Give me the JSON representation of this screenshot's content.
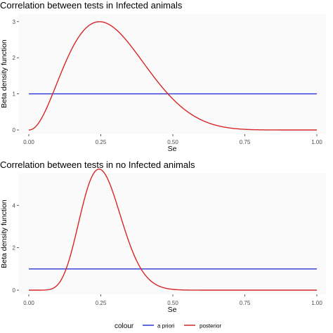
{
  "chart_data": [
    {
      "type": "line",
      "title": "Correlation between tests in Infected animals",
      "xlabel": "Se",
      "ylabel": "Beta density function",
      "xlim": [
        0,
        1
      ],
      "ylim": [
        0,
        3.2
      ],
      "x_ticks": [
        "0.00",
        "0.25",
        "0.50",
        "0.75",
        "1.00"
      ],
      "y_ticks": [
        "0",
        "1",
        "2",
        "3"
      ],
      "grid": false,
      "series": [
        {
          "name": "a priori",
          "color": "#2b35d8",
          "beta": [
            1,
            1
          ]
        },
        {
          "name": "posterior",
          "color": "#d62728",
          "beta": [
            3.26,
            7.95
          ]
        }
      ]
    },
    {
      "type": "line",
      "title": "Correlation between tests in no Infected animals",
      "xlabel": "Se",
      "ylabel": "Beta density function",
      "xlim": [
        0,
        1
      ],
      "ylim": [
        0,
        5.5
      ],
      "x_ticks": [
        "0.00",
        "0.25",
        "0.50",
        "0.75",
        "1.00"
      ],
      "y_ticks": [
        "0",
        "2",
        "4"
      ],
      "grid": false,
      "series": [
        {
          "name": "a priori",
          "color": "#2b35d8",
          "beta": [
            1,
            1
          ]
        },
        {
          "name": "posterior",
          "color": "#d62728",
          "beta": [
            9.9,
            28.6
          ]
        }
      ]
    }
  ],
  "legend": {
    "title": "colour",
    "placement": "bottom",
    "items": [
      {
        "label": "a priori",
        "color": "#2b35d8"
      },
      {
        "label": "posterior",
        "color": "#d62728"
      }
    ]
  }
}
